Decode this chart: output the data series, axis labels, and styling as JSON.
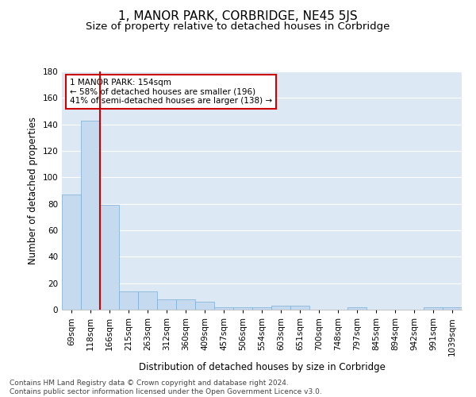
{
  "title": "1, MANOR PARK, CORBRIDGE, NE45 5JS",
  "subtitle": "Size of property relative to detached houses in Corbridge",
  "xlabel": "Distribution of detached houses by size in Corbridge",
  "ylabel": "Number of detached properties",
  "bar_labels": [
    "69sqm",
    "118sqm",
    "166sqm",
    "215sqm",
    "263sqm",
    "312sqm",
    "360sqm",
    "409sqm",
    "457sqm",
    "506sqm",
    "554sqm",
    "603sqm",
    "651sqm",
    "700sqm",
    "748sqm",
    "797sqm",
    "845sqm",
    "894sqm",
    "942sqm",
    "991sqm",
    "1039sqm"
  ],
  "bar_values": [
    87,
    143,
    79,
    14,
    14,
    8,
    8,
    6,
    2,
    2,
    2,
    3,
    3,
    0,
    0,
    2,
    0,
    0,
    0,
    2,
    2
  ],
  "bar_color": "#c5d9ef",
  "bar_edgecolor": "#7badd4",
  "vline_x": 1.5,
  "vline_color": "#cc0000",
  "ylim": [
    0,
    180
  ],
  "yticks": [
    0,
    20,
    40,
    60,
    80,
    100,
    120,
    140,
    160,
    180
  ],
  "annotation_text": "1 MANOR PARK: 154sqm\n← 58% of detached houses are smaller (196)\n41% of semi-detached houses are larger (138) →",
  "annotation_box_facecolor": "#ffffff",
  "annotation_box_edgecolor": "#cc0000",
  "footer_text": "Contains HM Land Registry data © Crown copyright and database right 2024.\nContains public sector information licensed under the Open Government Licence v3.0.",
  "background_color": "#dce9f5",
  "grid_color": "#ffffff",
  "title_fontsize": 11,
  "subtitle_fontsize": 9.5,
  "xlabel_fontsize": 8.5,
  "ylabel_fontsize": 8.5,
  "tick_fontsize": 7.5,
  "annotation_fontsize": 7.5,
  "footer_fontsize": 6.5
}
